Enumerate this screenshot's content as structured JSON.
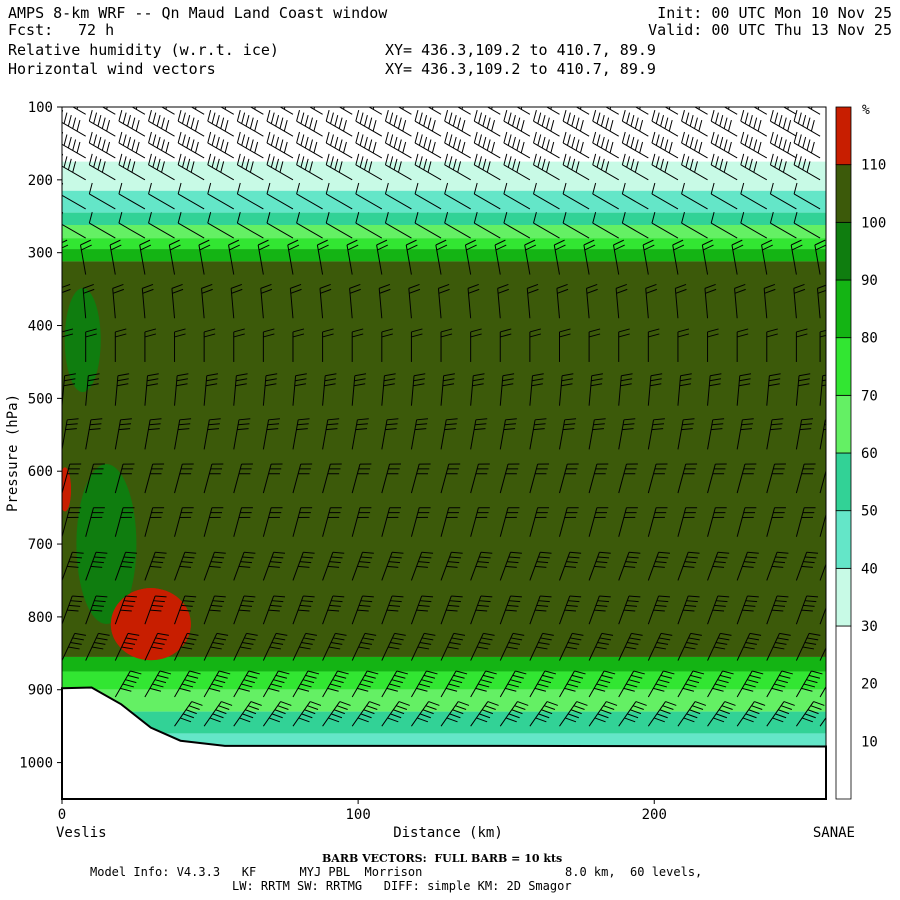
{
  "header": {
    "title": "AMPS 8-km WRF -- Qn Maud Land Coast window",
    "fcst_label": "Fcst:",
    "fcst_value": "72 h",
    "init": "Init: 00 UTC Mon 10 Nov 25",
    "valid": "Valid: 00 UTC Thu 13 Nov 25",
    "field1": "Relative humidity (w.r.t. ice)",
    "field2": "Horizontal wind vectors",
    "xy1": "XY= 436.3,109.2 to 410.7, 89.9",
    "xy2": "XY= 436.3,109.2 to 410.7, 89.9"
  },
  "footer": {
    "barb_note": "BARB VECTORS:  FULL BARB = 10 kts",
    "model_info_1": "Model Info: V4.3.3   KF      MYJ PBL  Morrison",
    "model_info_2": "8.0 km,  60 levels,",
    "model_info_3": "LW: RRTM SW: RRTMG   DIFF: simple KM: 2D Smagor"
  },
  "chart_data": {
    "type": "heatmap",
    "title": "Relative humidity (w.r.t. ice)",
    "xlabel": "Distance (km)",
    "ylabel": "Pressure (hPa)",
    "xlim": [
      0,
      258
    ],
    "ylim": [
      1050,
      100
    ],
    "x_ticks": [
      0,
      100,
      200
    ],
    "y_ticks": [
      100,
      200,
      300,
      400,
      500,
      600,
      700,
      800,
      900,
      1000
    ],
    "x_end_labels": {
      "left": "Veslis",
      "right": "SANAE"
    },
    "colorbar": {
      "unit": "%",
      "tick_labels": [
        10,
        20,
        30,
        40,
        50,
        60,
        70,
        80,
        90,
        100,
        110
      ],
      "bins": [
        {
          "from": 0,
          "to": 30,
          "color": "#ffffff"
        },
        {
          "from": 30,
          "to": 40,
          "color": "#c8fae6"
        },
        {
          "from": 40,
          "to": 50,
          "color": "#64e6c8"
        },
        {
          "from": 50,
          "to": 60,
          "color": "#32d296"
        },
        {
          "from": 60,
          "to": 70,
          "color": "#64f064"
        },
        {
          "from": 70,
          "to": 80,
          "color": "#32e632"
        },
        {
          "from": 80,
          "to": 90,
          "color": "#14b414"
        },
        {
          "from": 90,
          "to": 100,
          "color": "#0f7d0f"
        },
        {
          "from": 100,
          "to": 110,
          "color": "#3c5a0a"
        },
        {
          "from": 110,
          "to": 120,
          "color": "#c81e00"
        }
      ]
    },
    "rh_layers_hpa": [
      {
        "p_top": 100,
        "p_bottom": 175,
        "rh": 20
      },
      {
        "p_top": 175,
        "p_bottom": 215,
        "rh": 35
      },
      {
        "p_top": 215,
        "p_bottom": 245,
        "rh": 45
      },
      {
        "p_top": 245,
        "p_bottom": 262,
        "rh": 55
      },
      {
        "p_top": 262,
        "p_bottom": 280,
        "rh": 65
      },
      {
        "p_top": 280,
        "p_bottom": 295,
        "rh": 75
      },
      {
        "p_top": 295,
        "p_bottom": 312,
        "rh": 85
      },
      {
        "p_top": 312,
        "p_bottom": 855,
        "rh": 105
      },
      {
        "p_top": 855,
        "p_bottom": 875,
        "rh": 85
      },
      {
        "p_top": 875,
        "p_bottom": 900,
        "rh": 75
      },
      {
        "p_top": 900,
        "p_bottom": 930,
        "rh": 65
      },
      {
        "p_top": 930,
        "p_bottom": 960,
        "rh": 55
      },
      {
        "p_top": 960,
        "p_bottom": 980,
        "rh": 45
      }
    ],
    "rh_features": [
      {
        "name": "saturated patch",
        "rh": 115,
        "x_km": 30,
        "p_hpa": 810
      },
      {
        "name": "saturated patch",
        "rh": 115,
        "x_km": 1,
        "p_hpa": 625
      },
      {
        "name": "moist tongue",
        "rh": 95,
        "x_km": 15,
        "p_hpa": 700
      },
      {
        "name": "moist tongue",
        "rh": 95,
        "x_km": 7,
        "p_hpa": 420
      }
    ],
    "terrain_hpa": [
      {
        "x_km": 0,
        "p": 898
      },
      {
        "x_km": 10,
        "p": 897
      },
      {
        "x_km": 20,
        "p": 920
      },
      {
        "x_km": 30,
        "p": 952
      },
      {
        "x_km": 40,
        "p": 970
      },
      {
        "x_km": 55,
        "p": 977
      },
      {
        "x_km": 150,
        "p": 977
      },
      {
        "x_km": 258,
        "p": 978
      }
    ],
    "wind_columns_km": [
      0,
      8,
      18,
      28,
      38,
      48,
      58,
      68,
      78,
      88,
      98,
      108,
      118,
      128,
      138,
      148,
      158,
      168,
      178,
      188,
      198,
      208,
      218,
      228,
      238,
      248,
      256
    ],
    "wind_profile": [
      {
        "p": 110,
        "dir_deg": 300,
        "kts": 45
      },
      {
        "p": 140,
        "dir_deg": 300,
        "kts": 45
      },
      {
        "p": 170,
        "dir_deg": 300,
        "kts": 45
      },
      {
        "p": 200,
        "dir_deg": 300,
        "kts": 40
      },
      {
        "p": 240,
        "dir_deg": 300,
        "kts": 10
      },
      {
        "p": 280,
        "dir_deg": 300,
        "kts": 10
      },
      {
        "p": 330,
        "dir_deg": 350,
        "kts": 15
      },
      {
        "p": 390,
        "dir_deg": 355,
        "kts": 15
      },
      {
        "p": 450,
        "dir_deg": 0,
        "kts": 20
      },
      {
        "p": 510,
        "dir_deg": 5,
        "kts": 25
      },
      {
        "p": 570,
        "dir_deg": 10,
        "kts": 25
      },
      {
        "p": 630,
        "dir_deg": 15,
        "kts": 30
      },
      {
        "p": 690,
        "dir_deg": 15,
        "kts": 30
      },
      {
        "p": 750,
        "dir_deg": 20,
        "kts": 35
      },
      {
        "p": 810,
        "dir_deg": 20,
        "kts": 35
      },
      {
        "p": 860,
        "dir_deg": 25,
        "kts": 40
      },
      {
        "p": 910,
        "dir_deg": 30,
        "kts": 45
      },
      {
        "p": 950,
        "dir_deg": 35,
        "kts": 45
      }
    ]
  }
}
